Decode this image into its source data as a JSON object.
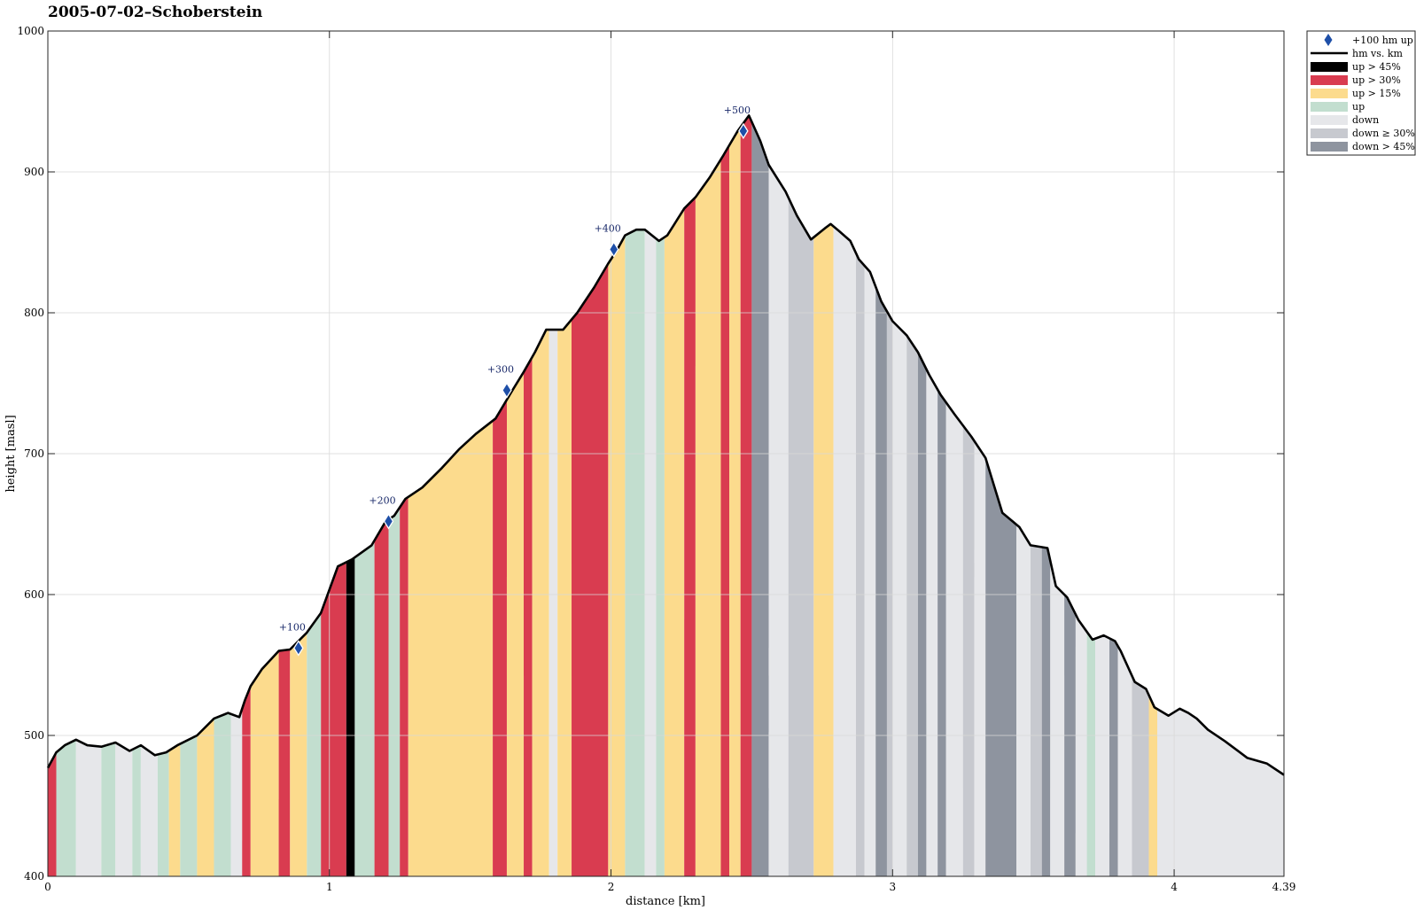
{
  "chart_data": {
    "type": "area",
    "title": "2005-07-02–Schoberstein",
    "xlabel": "distance [km]",
    "ylabel": "height [masl]",
    "xlim": [
      0,
      4.39
    ],
    "ylim": [
      400,
      1000
    ],
    "xticks": [
      "0",
      "1",
      "2",
      "3",
      "4",
      "4.39"
    ],
    "yticks": [
      "400",
      "500",
      "600",
      "700",
      "800",
      "900",
      "1000"
    ],
    "grid": true,
    "legend_position": "outside top-right",
    "legend": [
      {
        "label": "+100 hm up",
        "kind": "marker",
        "color": "#1e4fa8"
      },
      {
        "label": "hm vs. km",
        "kind": "line",
        "color": "#000000"
      },
      {
        "label": "up > 45%",
        "kind": "patch",
        "color": "#000000"
      },
      {
        "label": "up > 30%",
        "kind": "patch",
        "color": "#d93c50"
      },
      {
        "label": "up > 15%",
        "kind": "patch",
        "color": "#fcdb8d"
      },
      {
        "label": "up",
        "kind": "patch",
        "color": "#c2decf"
      },
      {
        "label": "down",
        "kind": "patch",
        "color": "#e6e7ea"
      },
      {
        "label": "down ≥ 30%",
        "kind": "patch",
        "color": "#c7c9cf"
      },
      {
        "label": "down > 45%",
        "kind": "patch",
        "color": "#8e949f"
      }
    ],
    "profile": {
      "x": [
        0,
        0.03,
        0.06,
        0.1,
        0.14,
        0.19,
        0.24,
        0.29,
        0.33,
        0.38,
        0.42,
        0.46,
        0.53,
        0.59,
        0.64,
        0.68,
        0.7,
        0.72,
        0.76,
        0.82,
        0.86,
        0.92,
        0.97,
        1.03,
        1.08,
        1.15,
        1.2,
        1.23,
        1.27,
        1.33,
        1.4,
        1.46,
        1.52,
        1.59,
        1.65,
        1.69,
        1.73,
        1.77,
        1.83,
        1.88,
        1.94,
        1.99,
        2.02,
        2.05,
        2.09,
        2.12,
        2.17,
        2.2,
        2.26,
        2.3,
        2.35,
        2.4,
        2.45,
        2.49,
        2.53,
        2.56,
        2.62,
        2.66,
        2.71,
        2.76,
        2.78,
        2.81,
        2.85,
        2.88,
        2.92,
        2.96,
        3.0,
        3.05,
        3.09,
        3.13,
        3.17,
        3.22,
        3.28,
        3.33,
        3.39,
        3.45,
        3.49,
        3.55,
        3.58,
        3.62,
        3.66,
        3.71,
        3.75,
        3.79,
        3.81,
        3.86,
        3.9,
        3.93,
        3.98,
        4.02,
        4.05,
        4.08,
        4.12,
        4.18,
        4.26,
        4.33,
        4.39
      ],
      "y": [
        477,
        488,
        493,
        497,
        493,
        492,
        495,
        489,
        493,
        486,
        488,
        493,
        500,
        512,
        516,
        513,
        525,
        535,
        547,
        560,
        561,
        573,
        587,
        620,
        625,
        635,
        652,
        656,
        668,
        676,
        690,
        703,
        714,
        725,
        745,
        758,
        772,
        788,
        788,
        800,
        818,
        835,
        844,
        855,
        859,
        859,
        851,
        855,
        874,
        882,
        896,
        912,
        929,
        940,
        922,
        905,
        886,
        869,
        852,
        860,
        863,
        858,
        851,
        838,
        829,
        808,
        794,
        784,
        772,
        756,
        742,
        728,
        712,
        697,
        658,
        648,
        635,
        633,
        606,
        598,
        582,
        568,
        571,
        567,
        560,
        538,
        533,
        520,
        514,
        519,
        516,
        512,
        504,
        496,
        484,
        480,
        472
      ]
    },
    "segments": [
      {
        "x0": 0.0,
        "x1": 0.03,
        "class": "up > 30%"
      },
      {
        "x0": 0.03,
        "x1": 0.1,
        "class": "up"
      },
      {
        "x0": 0.1,
        "x1": 0.19,
        "class": "down"
      },
      {
        "x0": 0.19,
        "x1": 0.24,
        "class": "up"
      },
      {
        "x0": 0.24,
        "x1": 0.3,
        "class": "down"
      },
      {
        "x0": 0.3,
        "x1": 0.33,
        "class": "up"
      },
      {
        "x0": 0.33,
        "x1": 0.39,
        "class": "down"
      },
      {
        "x0": 0.39,
        "x1": 0.43,
        "class": "up"
      },
      {
        "x0": 0.43,
        "x1": 0.47,
        "class": "up > 15%"
      },
      {
        "x0": 0.47,
        "x1": 0.53,
        "class": "up"
      },
      {
        "x0": 0.53,
        "x1": 0.59,
        "class": "up > 15%"
      },
      {
        "x0": 0.59,
        "x1": 0.65,
        "class": "up"
      },
      {
        "x0": 0.65,
        "x1": 0.69,
        "class": "down"
      },
      {
        "x0": 0.69,
        "x1": 0.72,
        "class": "up > 30%"
      },
      {
        "x0": 0.72,
        "x1": 0.82,
        "class": "up > 15%"
      },
      {
        "x0": 0.82,
        "x1": 0.86,
        "class": "up > 30%"
      },
      {
        "x0": 0.86,
        "x1": 0.92,
        "class": "up > 15%"
      },
      {
        "x0": 0.92,
        "x1": 0.97,
        "class": "up"
      },
      {
        "x0": 0.97,
        "x1": 1.06,
        "class": "up > 30%"
      },
      {
        "x0": 1.06,
        "x1": 1.09,
        "class": "up > 45%"
      },
      {
        "x0": 1.09,
        "x1": 1.16,
        "class": "up"
      },
      {
        "x0": 1.16,
        "x1": 1.21,
        "class": "up > 30%"
      },
      {
        "x0": 1.21,
        "x1": 1.25,
        "class": "up"
      },
      {
        "x0": 1.25,
        "x1": 1.28,
        "class": "up > 30%"
      },
      {
        "x0": 1.28,
        "x1": 1.58,
        "class": "up > 15%"
      },
      {
        "x0": 1.58,
        "x1": 1.63,
        "class": "up > 30%"
      },
      {
        "x0": 1.63,
        "x1": 1.69,
        "class": "up > 15%"
      },
      {
        "x0": 1.69,
        "x1": 1.72,
        "class": "up > 30%"
      },
      {
        "x0": 1.72,
        "x1": 1.78,
        "class": "up > 15%"
      },
      {
        "x0": 1.78,
        "x1": 1.81,
        "class": "down"
      },
      {
        "x0": 1.81,
        "x1": 1.86,
        "class": "up > 15%"
      },
      {
        "x0": 1.86,
        "x1": 1.99,
        "class": "up > 30%"
      },
      {
        "x0": 1.99,
        "x1": 2.05,
        "class": "up > 15%"
      },
      {
        "x0": 2.05,
        "x1": 2.12,
        "class": "up"
      },
      {
        "x0": 2.12,
        "x1": 2.16,
        "class": "down"
      },
      {
        "x0": 2.16,
        "x1": 2.19,
        "class": "up"
      },
      {
        "x0": 2.19,
        "x1": 2.26,
        "class": "up > 15%"
      },
      {
        "x0": 2.26,
        "x1": 2.3,
        "class": "up > 30%"
      },
      {
        "x0": 2.3,
        "x1": 2.39,
        "class": "up > 15%"
      },
      {
        "x0": 2.39,
        "x1": 2.42,
        "class": "up > 30%"
      },
      {
        "x0": 2.42,
        "x1": 2.46,
        "class": "up > 15%"
      },
      {
        "x0": 2.46,
        "x1": 2.5,
        "class": "up > 30%"
      },
      {
        "x0": 2.5,
        "x1": 2.56,
        "class": "down > 45%"
      },
      {
        "x0": 2.56,
        "x1": 2.63,
        "class": "down"
      },
      {
        "x0": 2.63,
        "x1": 2.72,
        "class": "down ≥ 30%"
      },
      {
        "x0": 2.72,
        "x1": 2.79,
        "class": "up > 15%"
      },
      {
        "x0": 2.79,
        "x1": 2.87,
        "class": "down"
      },
      {
        "x0": 2.87,
        "x1": 2.9,
        "class": "down ≥ 30%"
      },
      {
        "x0": 2.9,
        "x1": 2.94,
        "class": "down"
      },
      {
        "x0": 2.94,
        "x1": 2.98,
        "class": "down > 45%"
      },
      {
        "x0": 2.98,
        "x1": 3.0,
        "class": "down ≥ 30%"
      },
      {
        "x0": 3.0,
        "x1": 3.05,
        "class": "down"
      },
      {
        "x0": 3.05,
        "x1": 3.09,
        "class": "down ≥ 30%"
      },
      {
        "x0": 3.09,
        "x1": 3.12,
        "class": "down > 45%"
      },
      {
        "x0": 3.12,
        "x1": 3.16,
        "class": "down"
      },
      {
        "x0": 3.16,
        "x1": 3.19,
        "class": "down > 45%"
      },
      {
        "x0": 3.19,
        "x1": 3.25,
        "class": "down"
      },
      {
        "x0": 3.25,
        "x1": 3.29,
        "class": "down ≥ 30%"
      },
      {
        "x0": 3.29,
        "x1": 3.33,
        "class": "down"
      },
      {
        "x0": 3.33,
        "x1": 3.44,
        "class": "down > 45%"
      },
      {
        "x0": 3.44,
        "x1": 3.49,
        "class": "down"
      },
      {
        "x0": 3.49,
        "x1": 3.53,
        "class": "down ≥ 30%"
      },
      {
        "x0": 3.53,
        "x1": 3.56,
        "class": "down > 45%"
      },
      {
        "x0": 3.56,
        "x1": 3.61,
        "class": "down"
      },
      {
        "x0": 3.61,
        "x1": 3.65,
        "class": "down > 45%"
      },
      {
        "x0": 3.65,
        "x1": 3.69,
        "class": "down"
      },
      {
        "x0": 3.69,
        "x1": 3.72,
        "class": "up"
      },
      {
        "x0": 3.72,
        "x1": 3.77,
        "class": "down"
      },
      {
        "x0": 3.77,
        "x1": 3.8,
        "class": "down > 45%"
      },
      {
        "x0": 3.8,
        "x1": 3.85,
        "class": "down"
      },
      {
        "x0": 3.85,
        "x1": 3.91,
        "class": "down ≥ 30%"
      },
      {
        "x0": 3.91,
        "x1": 3.94,
        "class": "up > 15%"
      },
      {
        "x0": 3.94,
        "x1": 4.39,
        "class": "down"
      }
    ],
    "markers": [
      {
        "label": "+100",
        "x": 0.89,
        "y": 562
      },
      {
        "label": "+200",
        "x": 1.21,
        "y": 652
      },
      {
        "label": "+300",
        "x": 1.63,
        "y": 745
      },
      {
        "label": "+400",
        "x": 2.01,
        "y": 845
      },
      {
        "label": "+500",
        "x": 2.47,
        "y": 929
      }
    ]
  }
}
